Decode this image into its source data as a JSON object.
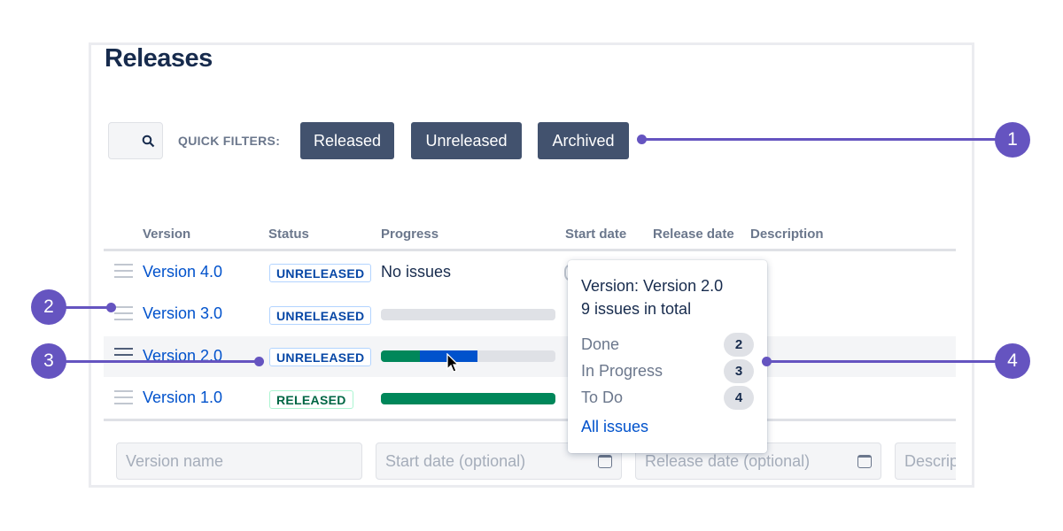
{
  "page_title": "Releases",
  "quick_filters": {
    "label": "QUICK FILTERS:",
    "buttons": [
      "Released",
      "Unreleased",
      "Archived"
    ]
  },
  "table": {
    "headers": [
      "Version",
      "Status",
      "Progress",
      "Start date",
      "Release date",
      "Description"
    ],
    "rows": [
      {
        "version": "Version 4.0",
        "status": "UNRELEASED",
        "progress_text": "No issues"
      },
      {
        "version": "Version 3.0",
        "status": "UNRELEASED",
        "progress": {
          "done": 0,
          "in_progress": 0,
          "todo": 1
        }
      },
      {
        "version": "Version 2.0",
        "status": "UNRELEASED",
        "progress": {
          "done": 2,
          "in_progress": 3,
          "todo": 4
        }
      },
      {
        "version": "Version 1.0",
        "status": "RELEASED",
        "progress": {
          "done": 1,
          "in_progress": 0,
          "todo": 0
        }
      }
    ]
  },
  "new_version_form": {
    "version_name_placeholder": "Version name",
    "start_date_placeholder": "Start date (optional)",
    "release_date_placeholder": "Release date (optional)",
    "description_placeholder": "Description"
  },
  "popup": {
    "title": "Version: Version 2.0",
    "total": "9 issues in total",
    "items": [
      {
        "label": "Done",
        "count": "2"
      },
      {
        "label": "In Progress",
        "count": "3"
      },
      {
        "label": "To Do",
        "count": "4"
      }
    ],
    "link": "All issues"
  },
  "annotations": [
    "1",
    "2",
    "3",
    "4"
  ],
  "colors": {
    "accent": "#6554c0",
    "done": "#00875a",
    "in_progress": "#0052cc",
    "todo": "#dfe1e6",
    "button": "#42526e",
    "link": "#0052cc"
  }
}
